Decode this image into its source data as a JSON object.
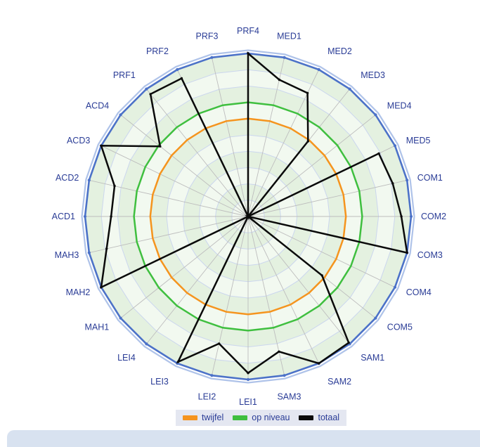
{
  "chart_data": {
    "type": "radar",
    "title": "",
    "categories": [
      "PRF4",
      "MED1",
      "MED2",
      "MED3",
      "MED4",
      "MED5",
      "COM1",
      "COM2",
      "COM3",
      "COM4",
      "COM5",
      "SAM1",
      "SAM2",
      "SAM3",
      "LEI1",
      "LEI2",
      "LEI3",
      "LEI4",
      "MAH1",
      "MAH2",
      "MAH3",
      "ACD1",
      "ACD2",
      "ACD3",
      "ACD4",
      "PRF1",
      "PRF2",
      "PRF3"
    ],
    "series": [
      {
        "name": "twijfel",
        "color": "#F5941E",
        "values": [
          60,
          60,
          60,
          60,
          60,
          60,
          60,
          60,
          60,
          60,
          60,
          60,
          60,
          60,
          60,
          60,
          60,
          60,
          60,
          60,
          60,
          60,
          60,
          60,
          60,
          60,
          60,
          60
        ]
      },
      {
        "name": "op niveau",
        "color": "#3FBF3F",
        "values": [
          70,
          70,
          70,
          70,
          70,
          70,
          70,
          70,
          70,
          70,
          70,
          70,
          70,
          70,
          70,
          70,
          70,
          70,
          70,
          70,
          70,
          70,
          70,
          70,
          70,
          70,
          70,
          70
        ]
      },
      {
        "name": "totaal",
        "color": "#0A0A0A",
        "values": [
          100,
          86,
          84,
          59,
          0,
          89,
          91,
          94,
          100,
          0,
          58,
          99,
          100,
          85,
          96,
          80,
          99,
          0,
          0,
          100,
          89,
          84,
          84,
          100,
          69,
          96,
          94,
          0
        ]
      }
    ],
    "ylim": [
      0,
      100
    ],
    "ring_count": 10,
    "grid": true,
    "legend_position": "bottom",
    "axis_label_color": "#2A3C96",
    "outer_ring_color": "#4C72C8"
  },
  "legend": {
    "items": [
      {
        "label": "twijfel",
        "color": "#F5941E"
      },
      {
        "label": "op niveau",
        "color": "#3FBF3F"
      },
      {
        "label": "totaal",
        "color": "#0A0A0A"
      }
    ]
  },
  "colors": {
    "band_green": "#E4F1E0",
    "band_light": "#F2F9F0",
    "ring_line": "#CBD6EE",
    "spoke": "#BDBDBD",
    "outer_halo": "#AFC3E9",
    "legend_bg": "#E4E7F1",
    "bottom_bar": "#D8E2F0",
    "background": "#FFFFFF"
  }
}
